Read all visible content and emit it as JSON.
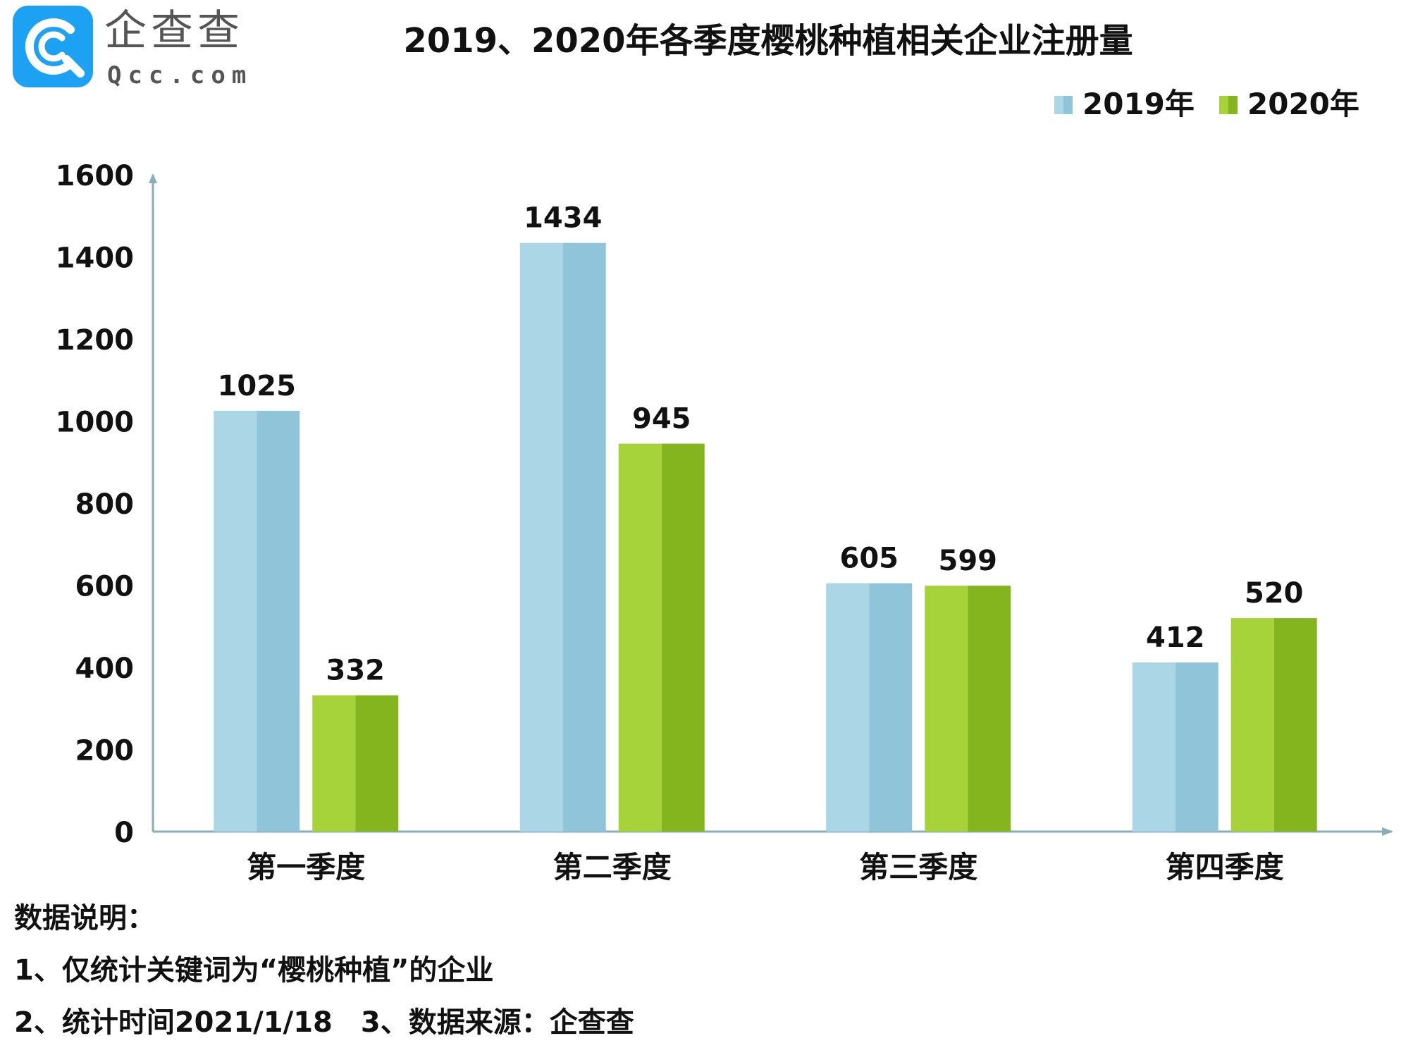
{
  "logo": {
    "name_cn": "企查查",
    "name_en": "Qcc.com",
    "badge_color": "#1da1f2"
  },
  "chart_data": {
    "type": "bar",
    "title": "2019、2020年各季度樱桃种植相关企业注册量",
    "xlabel": "",
    "ylabel": "",
    "categories": [
      "第一季度",
      "第二季度",
      "第三季度",
      "第四季度"
    ],
    "series": [
      {
        "name": "2019年",
        "values": [
          1025,
          1434,
          605,
          412
        ],
        "color_light": "#abd6e6",
        "color_dark": "#8fc4d9"
      },
      {
        "name": "2020年",
        "values": [
          332,
          945,
          599,
          520
        ],
        "color_light": "#a6d23a",
        "color_dark": "#84b41e"
      }
    ],
    "ylim": [
      0,
      1600
    ],
    "yticks": [
      0,
      200,
      400,
      600,
      800,
      1000,
      1200,
      1400,
      1600
    ],
    "legend_position": "top-right",
    "grid": false,
    "data_labels": true,
    "axis_color": "#8aaeb8"
  },
  "notes": {
    "heading": "数据说明：",
    "line1": "1、仅统计关键词为“樱桃种植”的企业",
    "line2": "2、统计时间2021/1/18　3、数据来源：企查查"
  }
}
